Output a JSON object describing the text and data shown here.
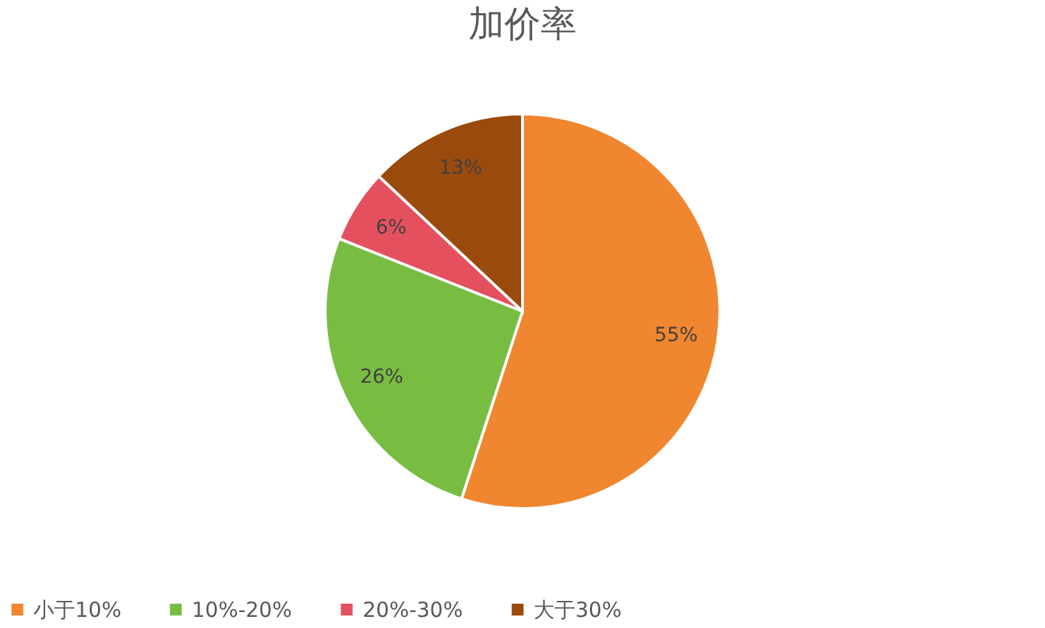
{
  "chart_data": {
    "type": "pie",
    "title": "加价率",
    "categories": [
      "小于10%",
      "10%-20%",
      "20%-30%",
      "大于30%"
    ],
    "values": [
      55,
      26,
      6,
      13
    ],
    "colors": [
      "#f0862f",
      "#78bd42",
      "#e5505f",
      "#9b4a0e"
    ],
    "value_labels": [
      "55%",
      "26%",
      "6%",
      "13%"
    ],
    "legend": "bottom"
  }
}
